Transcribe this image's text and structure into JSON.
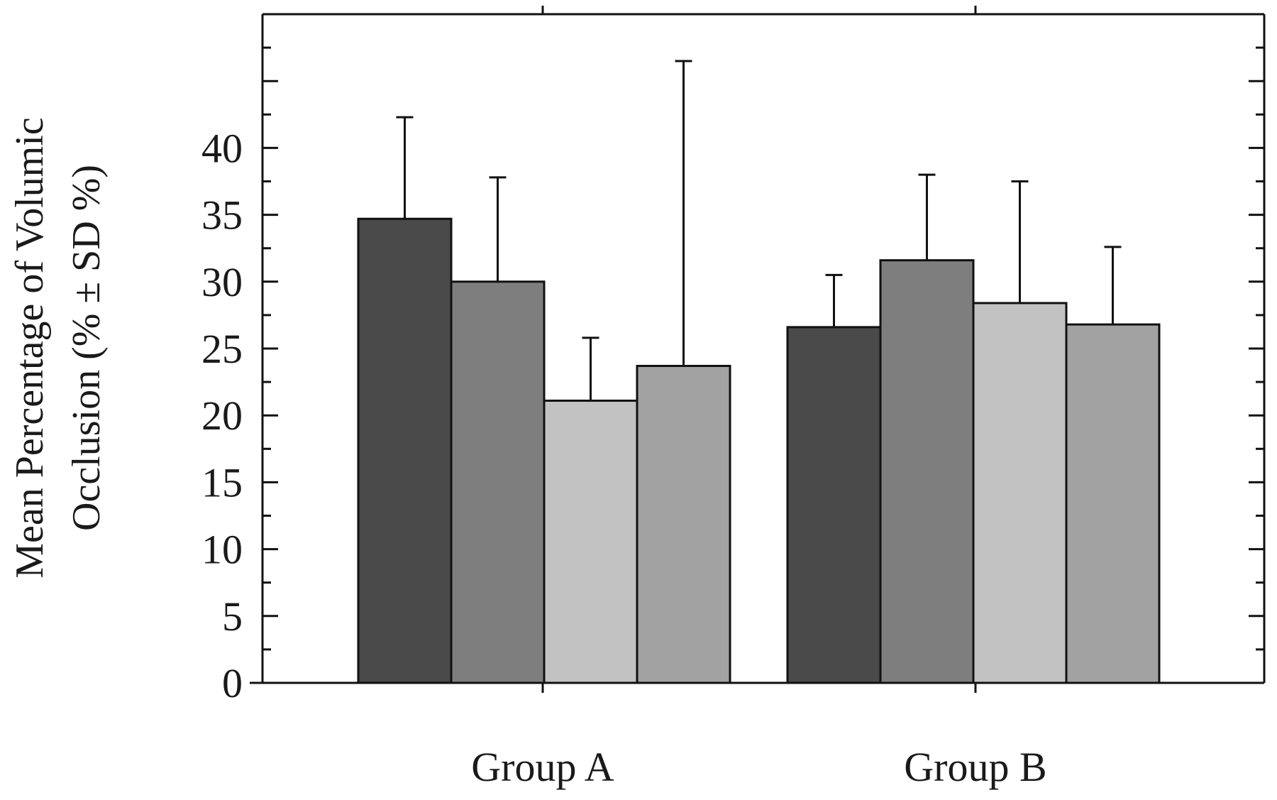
{
  "chart_data": {
    "type": "bar",
    "title": "",
    "xlabel": "",
    "ylabel_lines": [
      "Mean Percentage of Volumic",
      "Occlusion (% ± SD %)"
    ],
    "categories": [
      "Group A",
      "Group B"
    ],
    "series": [
      {
        "values": [
          34.7,
          26.6
        ],
        "errors": [
          7.6,
          3.9
        ],
        "color": "#4a4a4a"
      },
      {
        "values": [
          30.0,
          31.6
        ],
        "errors": [
          7.8,
          6.4
        ],
        "color": "#7e7e7e"
      },
      {
        "values": [
          21.1,
          28.4
        ],
        "errors": [
          4.7,
          9.1
        ],
        "color": "#c2c2c2"
      },
      {
        "values": [
          23.7,
          26.8
        ],
        "errors": [
          22.8,
          5.8
        ],
        "color": "#a2a2a2"
      }
    ],
    "yticks": [
      "0",
      "5",
      "10",
      "15",
      "20",
      "25",
      "30",
      "35",
      "40"
    ],
    "ylim": [
      0,
      50
    ],
    "grid": false,
    "legend": "none"
  }
}
